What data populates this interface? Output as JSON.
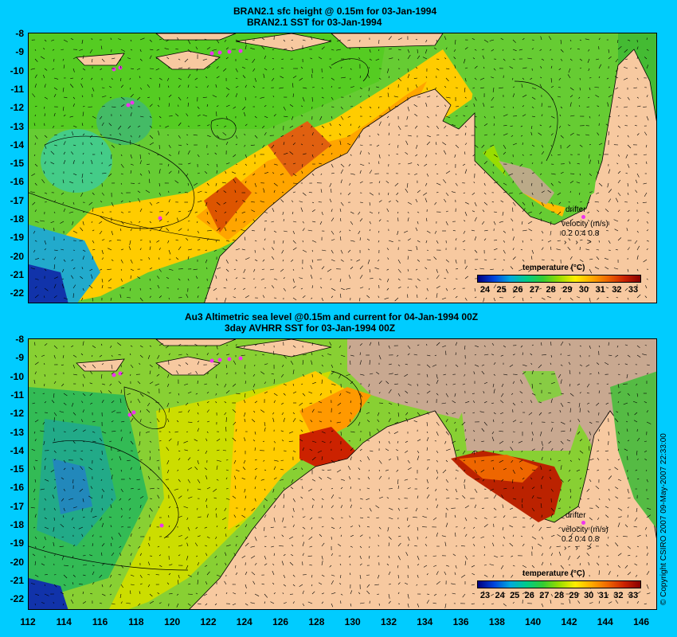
{
  "top": {
    "title_line1": "BRAN2.1 sfc height @ 0.15m for 03-Jan-1994",
    "title_line2": "BRAN2.1 SST for 03-Jan-1994",
    "legend_drifter": "drifter",
    "legend_velocity": "velocity (m/s)",
    "legend_scale": "0.2 0.4 0.8",
    "cbar_title": "temperature (°C)",
    "cbar_ticks": [
      "24",
      "25",
      "26",
      "27",
      "28",
      "29",
      "30",
      "31",
      "32",
      "33"
    ]
  },
  "bottom": {
    "title_line1": "Au3 Altimetric sea level  @0.15m and current for 04-Jan-1994 00Z",
    "title_line2": "3day AVHRR SST for 03-Jan-1994 00Z",
    "legend_drifter": "drifter",
    "legend_velocity": "velocity (m/s)",
    "legend_scale": "0.2 0.4 0.8",
    "cbar_title": "temperature (°C)",
    "cbar_ticks": [
      "23",
      "24",
      "25",
      "26",
      "27",
      "28",
      "29",
      "30",
      "31",
      "32",
      "33"
    ]
  },
  "y_labels": [
    "-8",
    "-9",
    "-10",
    "-11",
    "-12",
    "-13",
    "-14",
    "-15",
    "-16",
    "-17",
    "-18",
    "-19",
    "-20",
    "-21",
    "-22"
  ],
  "x_labels": [
    "112",
    "114",
    "116",
    "118",
    "120",
    "122",
    "124",
    "126",
    "128",
    "130",
    "132",
    "134",
    "136",
    "138",
    "140",
    "142",
    "144",
    "146"
  ],
  "copyright": "© Copyright CSIRO 2007   09-May-2007 22:33:00",
  "colors": {
    "background": "#00ccff",
    "land": "#f7c9a0",
    "nodata": "#c8a890",
    "drifter": "#ee33ee"
  }
}
